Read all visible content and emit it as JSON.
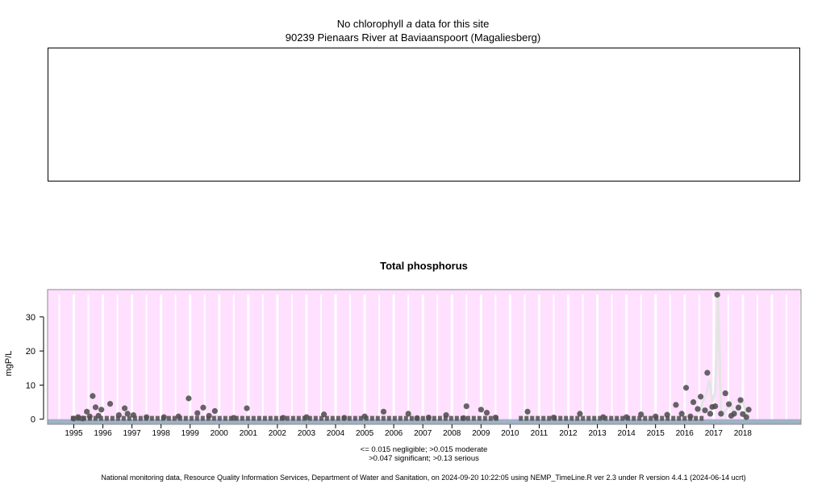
{
  "chlorophyll_panel": {
    "title_prefix": "No chlorophyll ",
    "title_italic": "a",
    "title_suffix": " data for this site",
    "subtitle": "90239 Pienaars River at Baviaanspoort (Magaliesberg)"
  },
  "phosphorus_panel": {
    "legend_line1": "<= 0.015 negligible; >0.015 moderate",
    "legend_line2": ">0.047 significant; >0.13 serious"
  },
  "footer": "National monitoring data, Resource Quality Information Services, Department of Water and Sanitation, on 2024-09-20 10:22:05 using NEMP_TimeLine.R ver 2.3 under R version 4.4.1 (2024-06-14 ucrt)",
  "colors": {
    "panel_bg": "#ffe0ff",
    "gridline": "#ffffff",
    "point": "#505050",
    "trend_line": "#e4e4e4",
    "baseline_band": "#9fb2c6"
  },
  "chart_data": {
    "type": "scatter",
    "title": "Total phosphorus",
    "xlabel": "",
    "ylabel": "mgP/L",
    "xlim": [
      1994.1,
      2020.0
    ],
    "ylim": [
      -1.5,
      38.0
    ],
    "x_ticks": [
      1995,
      1996,
      1997,
      1998,
      1999,
      2000,
      2001,
      2002,
      2003,
      2004,
      2005,
      2006,
      2007,
      2008,
      2009,
      2010,
      2011,
      2012,
      2013,
      2014,
      2015,
      2016,
      2017,
      2018
    ],
    "x_tick_labels": [
      "1995",
      "1996",
      "1997",
      "1998",
      "1999",
      "2000",
      "2001",
      "2002",
      "2003",
      "2004",
      "2005",
      "2006",
      "2007",
      "2008",
      "2009",
      "2010",
      "2011",
      "2012",
      "2013",
      "2014",
      "2015",
      "2016",
      "2017",
      "2018"
    ],
    "y_ticks": [
      0,
      10,
      20,
      30
    ],
    "y_tick_labels": [
      "0",
      "10",
      "20",
      "30"
    ],
    "grid": true,
    "baseline_band": {
      "x_start": 1994.1,
      "x_end": 2020.0,
      "y_min": -1.5,
      "y_max": 0.0
    },
    "zero_runs": [
      [
        1994.9,
        2009.6
      ],
      [
        2010.3,
        2016.7
      ]
    ],
    "x": [
      1995.0,
      1995.15,
      1995.3,
      1995.45,
      1995.55,
      1995.65,
      1995.75,
      1995.85,
      1995.95,
      1996.25,
      1996.55,
      1996.75,
      1996.85,
      1997.05,
      1997.5,
      1998.1,
      1998.6,
      1998.95,
      1999.25,
      1999.45,
      1999.65,
      1999.85,
      2000.5,
      2000.95,
      2002.2,
      2003.0,
      2003.6,
      2004.3,
      2005.0,
      2005.65,
      2006.5,
      2006.8,
      2007.2,
      2007.8,
      2008.4,
      2008.5,
      2009.0,
      2009.2,
      2009.5,
      2010.6,
      2011.5,
      2012.4,
      2013.2,
      2014.0,
      2014.5,
      2015.0,
      2015.4,
      2015.7,
      2015.9,
      2016.05,
      2016.2,
      2016.3,
      2016.45,
      2016.55,
      2016.7,
      2016.78,
      2016.88,
      2016.95,
      2017.05,
      2017.12,
      2017.25,
      2017.4,
      2017.52,
      2017.6,
      2017.7,
      2017.85,
      2017.92,
      2018.0,
      2018.12,
      2018.2
    ],
    "y": [
      0.2,
      0.6,
      0.2,
      2.2,
      0.8,
      6.8,
      3.5,
      1.0,
      2.8,
      4.5,
      1.2,
      3.2,
      1.6,
      1.2,
      0.6,
      0.6,
      0.8,
      6.1,
      1.8,
      3.4,
      1.0,
      2.4,
      0.4,
      3.2,
      0.4,
      0.6,
      1.4,
      0.4,
      0.8,
      2.2,
      1.6,
      0.3,
      0.5,
      1.2,
      0.3,
      3.8,
      2.8,
      1.9,
      0.5,
      2.2,
      0.5,
      1.6,
      0.6,
      0.6,
      1.4,
      0.8,
      1.3,
      4.2,
      1.6,
      9.2,
      0.8,
      5.0,
      3.0,
      6.6,
      2.6,
      13.6,
      1.6,
      3.6,
      3.8,
      36.5,
      1.6,
      7.6,
      4.4,
      1.0,
      1.6,
      3.4,
      5.6,
      1.5,
      0.6,
      2.8
    ],
    "trend": {
      "x": [
        2016.5,
        2016.6,
        2016.75,
        2016.85,
        2016.95,
        2017.05,
        2017.15,
        2017.25,
        2017.4,
        2017.5,
        2017.6,
        2017.7,
        2017.8,
        2017.9,
        2018.0,
        2018.1,
        2018.2
      ],
      "y": [
        1.5,
        4.5,
        7.5,
        11.5,
        5.0,
        8.0,
        36.5,
        1.0,
        2.5,
        3.5,
        5.0,
        1.5,
        2.5,
        4.5,
        5.5,
        2.0,
        2.5
      ]
    }
  }
}
